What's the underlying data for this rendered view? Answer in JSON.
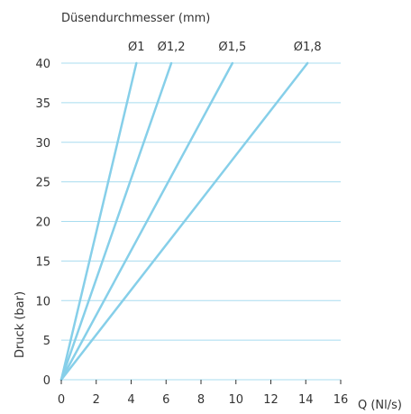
{
  "chart_data": {
    "type": "line",
    "title": "Düsendurchmesser (mm)",
    "xlabel": "Q (Nl/s)",
    "ylabel": "Druck (bar)",
    "xlim": [
      0,
      16
    ],
    "ylim": [
      0,
      40
    ],
    "xticks": [
      0,
      2,
      4,
      6,
      8,
      10,
      12,
      14,
      16
    ],
    "yticks": [
      0,
      5,
      10,
      15,
      20,
      25,
      30,
      35,
      40
    ],
    "grid": "horizontal",
    "line_color": "#86cfe9",
    "grid_color": "#a8dcef",
    "series": [
      {
        "name": "Ø1",
        "x": [
          0,
          4.3
        ],
        "y": [
          0,
          40
        ]
      },
      {
        "name": "Ø1,2",
        "x": [
          0,
          6.3
        ],
        "y": [
          0,
          40
        ]
      },
      {
        "name": "Ø1,5",
        "x": [
          0,
          9.8
        ],
        "y": [
          0,
          40
        ]
      },
      {
        "name": "Ø1,8",
        "x": [
          0,
          14.1
        ],
        "y": [
          0,
          40
        ]
      }
    ]
  }
}
